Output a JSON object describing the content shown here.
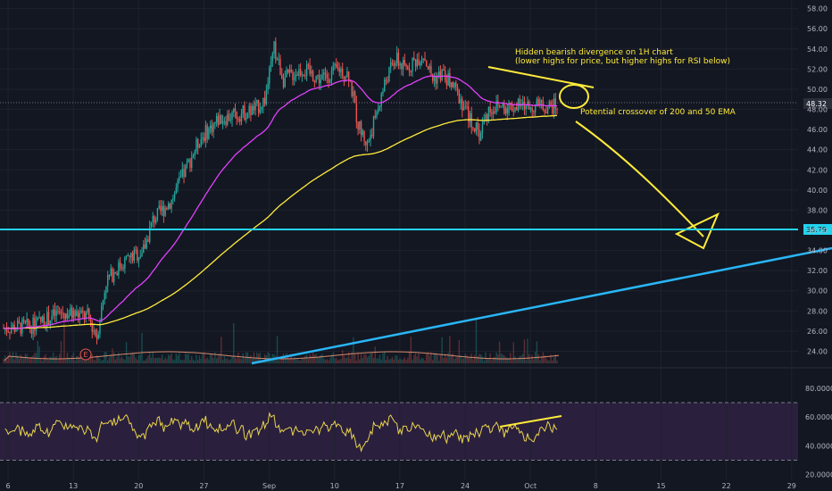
{
  "chart_data": {
    "type": "candlestick",
    "price_axis": {
      "ticks": [
        "58.00",
        "56.00",
        "54.00",
        "52.00",
        "50.00",
        "48.00",
        "46.00",
        "44.00",
        "42.00",
        "40.00",
        "38.00",
        "36.00",
        "34.00",
        "32.00",
        "30.00",
        "28.00",
        "26.00",
        "24.00"
      ],
      "ylim": [
        22.8,
        58.5
      ]
    },
    "rsi_axis": {
      "ticks": [
        "80.0000",
        "60.0000",
        "40.0000",
        "20.0000"
      ],
      "ylim": [
        16,
        88
      ],
      "upper_band": 70,
      "lower_band": 30
    },
    "x_axis": {
      "ticks": [
        "6",
        "13",
        "20",
        "27",
        "Sep",
        "10",
        "17",
        "24",
        "Oct",
        "8",
        "15",
        "22",
        "29"
      ],
      "span_days": [
        0,
        56
      ]
    },
    "price_labels": {
      "current": "48.32",
      "level": "35.79"
    },
    "horizontal_level": 35.79,
    "current_price": 48.32,
    "colors": {
      "background": "#131722",
      "rsi_band": "#2a1f3d",
      "up": "#26a69a",
      "down": "#ef5350",
      "ema50": "#e040fb",
      "ema200": "#ffeb3b",
      "level_line": "#22d3ee",
      "trendline": "#29b6f6",
      "annotation": "#ffeb3b"
    },
    "annotations": {
      "divergence_line1": "Hidden bearish divergence on 1H chart",
      "divergence_line2": "(lower highs for price, but higher highs for RSI below)",
      "crossover": "Potential crossover of 200 and 50 EMA",
      "event_marker": "E"
    }
  }
}
